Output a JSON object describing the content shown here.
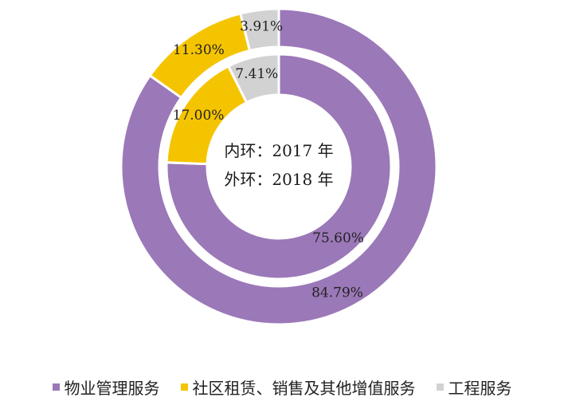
{
  "chart_data": {
    "type": "pie",
    "center_text": [
      "内环：2017 年",
      "外环：2018 年"
    ],
    "categories": [
      "物业管理服务",
      "社区租赁、销售及其他增值服务",
      "工程服务"
    ],
    "colors": [
      "#9b78b8",
      "#f5c400",
      "#d2d2d2"
    ],
    "series": [
      {
        "ring": "inner",
        "values": [
          75.6,
          17.0,
          7.41
        ],
        "labels": [
          "75.60%",
          "17.00%",
          "7.41%"
        ]
      },
      {
        "ring": "outer",
        "values": [
          84.79,
          11.3,
          3.91
        ],
        "labels": [
          "84.79%",
          "11.30%",
          "3.91%"
        ]
      }
    ],
    "legend_position": "bottom"
  }
}
